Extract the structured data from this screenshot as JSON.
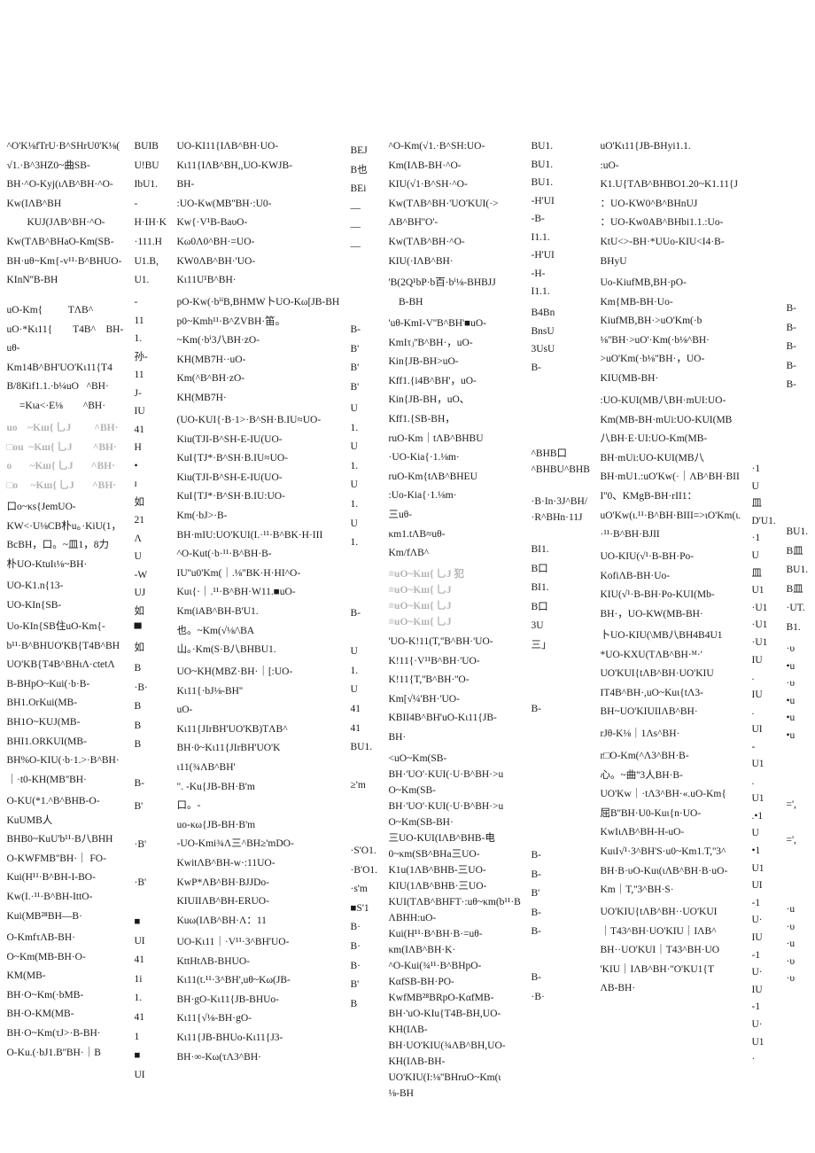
{
  "blocks": [
    "^O'K⅛fTrU·B^SHrU0'K⅛(\n√1.·B^3HZ0~曲SB-\nBH·^O-Kyj(ιΛB^BH·^O-\nKw(IΛB^BH\n        KUJ(JΛB^BH·^O-\nKw(TΛB^BHaO-Km(SB-\nBH·uθ~Km{-v¹¹·B^BHUO-\nKInN''B-BH",
    "uO-Km{          TΛB^\nuO·*Kι11{        T4B^    BH-\nuθ-\nKm14B^BH'UO'Kι11{T4\nB/8Kif1.1.·b¼uO   ^BH·\n     =Kιa<·E⅛        ^BH·",
    "uo    ~Kш{ 乚J         ^BH·\n□ou  ~Kш{ 乚J        ^BH·\no       ~Kш{ 乚J       ^BH·\n□o     ~Kш{ 乚J       ^BH·",
    "口o~κs{JemUO-\nKW<·U⅛CB朴u。·KiU(1，\nBcBH，口。~皿1，8力\n朴UO-KtuIι⅛~BH·",
    "UO-K1.n{13-\nUO-KIn{SB-",
    "Uo-KIn{SB住uO-Km{-\nb¹¹·B^BHUO'KB{T4B^BH\nUO'KB{T4B^BHιΛ·ctetΛ\nB-BHpO~Kui(·b·B-\nBH1.OrKui(MB-\nBH1O~KUJ(MB-\nBHI1.ORKUI(MB-\nBH%O-KIU(·b·1.>·B^BH·\n｜·t0-KH(MB''BH·",
    "O-KU(*1.^B^BHB-O-\nKuUMB人\nBHB0~KuU'b¹¹·B八BHH\nO-KWFMB''BH·｜ FO-\nKui(H¹¹·B^BH-I-BO-\nKw(I.·¹¹·B^BH-IttO-\nKui(MB²⁸BH—B·",
    "O-KmfτΛB-BH·\nO~Km(MB-BH·O-\nKM(MB-\nBH·O~Km(·bMB-\nBH·O-KM(MB-\nBH·O~Km(τJ>·B-BH·\nO-Ku.(·bJ1.B''BH·｜B",
    "BUIB\nU!BU\nIbU1.\n-\nH·IH·K\n·111.H\nU1.B,\nU1.",
    "-\n11\n1.\n孙-\n11\nJ-\nIU\n41\nH\n•\nɪ\n如\n21\nΛ\nU\n-W\nUJ\n如\n▀\n如",
    "B\n·B·\nB\nB\nB\n\nB-",
    "B'\n\n·B'\n\n·B'",
    "UO-KI11{IΛB^BH·UO-\nKι11{IΛB^BH,,UO-KWJB-\nBH-\n:UO-Kw(MB''BH·:U0-\nKw{·V¹B-BaυO-\nKω0Λ0^BH·=UO-\nKW0ΛB^BH·'UO-\nKι11U¹B^BH·",
    "pO-Kw(·bⁱⁱB,BHMW卜UO-Kω[JB-BH\np0~Kmh¹¹·B^ZVBH·笛。\n~Km(·bⁱ3八BH·zO-\nKH(MB7H··uO-\nKm(^B^BH·zO-\nKH(MB7H·",
    "(UO-KUI{·B·1>·B^SH·B.IU≈UO-\nKiu(TJI-B^SH-E-IU(UO-\nKuI{TJ*·B^SH·B.IU≈UO-\nKiu(TJI-B^SH-E-IU(UO-\nKuI{TJ*·B^SH·B.IU:UO-\nKm(·bJ>·B-\nBH·mIU:UO'KUI(I.·¹¹·B^BK·H·III\n^O-Kut(·b·¹¹·B^BH·B-\nIU''u0'Km(｜.⅛''BK·H·HI^O-\nKuι{·｜.¹¹·B^BH·W11.■uO-\nKm(iAB^BH-B'U1.\n也。~Km(√⅛/\\BA\n山。·Km(S·B八BHBU1.",
    "UO~KH(MBZ·BH·｜[:UO-\nKι11{·bJ⅛-BH''\nuO-\nKι11{JIrBH'UO'KB)TΛB^\nBH·0~Kι11{JIrBH'UO'K\nι11(¾ΛB^BH'\n\". -Ku{JB-BH·B'm\n口。-\nuo-κω{JB-BH·B'm\n-UO-Kmi¾Λ三^BH≥'mDO-\nKwitΛB^BH-w·:11UO-\nKwP*ΛB^BH·BJJDo-\nKIUIIΛB^BH-ERUO-\nKuω(IΛB^BH·Λ：11",
    "UO-Kι11｜·V¹¹·3^BH'UO-\nKttHtΛB-BHUO-\nKι11(t.¹¹·3^BH',uθ~Kω(JB-\nBH·gO-Kι11{JB-BHUo-\nKι11{√⅛-BH·gO-\nKι11{JB-BHUo-Kι11{J3-\nBH·∞-Kω(τΛ3^BH·",
    "BEJ\nB也\nBEi\n—\n—\n—",
    "B-\nB'\nB'\nB'",
    "U\n1.\nU\n1.\nU\n1.\nU\n1.",
    "B-\n\nU\n1.\nU\n41\n41\nBU1.\n\n≥'m",
    "·S'O1.\n·B'O1.\n·s'm\n■S'1\nB·\nB·\nB·\nB'\nB",
    "■\nUI\n41\n1i\n1.\n41\n1\n■\nUI",
    "^O-Km(√1.·B^SH:UO-\nKm(IΛB-BH·^O-\nKIU(√1·B^SH·^O-\nKw(TΛB^BH·'UO'KUI(·>\nΛB^BH''O'-\nKw(TΛB^BH·^O-\nKIU(·IΛB^BH·",
    "'B(2Q¹bP·b百·bⁱ⅛-BHBJJ\n    B-BH",
    "'uθ-KmI-V''B^BH'■uO-\nKmIτⱼ''B^BH·，uO-\nKin{JB-BH>uO-\nKff1.{i4B^BH'，uO-\nKin{JB-BH，uO、\nKff1.{SB-BH，\nruO-Km｜tΛB^BHBU\n·UO-Kia{·1.⅛m·\nruO-Km{tΛB^BHEU\n:Uo-Kia{·1.⅛m·\n三uθ-\nκm1.tΛB≈uθ-\nKm/fΛB^",
    "≡uO~Kш{ 乚J 犯\n≡uO~Kш{ 乚J\n≡uO~Kш{ 乚J\n≡uO~Kш{ 乚J",
    "^BHB口\n^BHBU^BHB\n\n·B·In·3J^BH/\n·R^BHn·11J",
    "'UO-K!11(T,''B^BH·'UO-\nK!11{·V¹¹B^BH·'UO-\nK!11{T,''B^BH·''O-\nKm[√¼'BH·'UO-\nKBII4B^BH'uO-Kι11{JB-\nBH·",
    "<uO~Km(SB-\nBH·'UO'·KUI(·U·B^BH·>u\nO~Km(SB-\nBH·'UO'·KUI(·U·B^BH·>u\nO~Km(SB-BH·\n三UO-KUI(IΛB^BHB-电\n0~κm(SB^BHa三UO-\nK1u(1ΛB^BHB-三UO-\nKIU(1ΛB^BHB·三UO-\nKUI(TΛB^BHFT·:uθ~κm(b¹¹·B\nΛBHH:uO-\nKui(H¹¹·B^BH·B·=uθ-\nκm(IΛB^BH·K·\n^O-Kui(¾¹¹·B^BHpO-\nKαfSB-BH·PO-\nKwfMB²⁸BRpO-KαfMB-\nBH·'uO-KIu{T4B-BH,UO-\nKH(IΛB-\nBH·UO'KIU(¾ΛB^BH,UO-\nKH(IΛB-BH-\nUO'KIU(I:⅛''BHruO~Km(ι\n⅛-BH",
    "BU1.\nBU1.\nBU1.\n-H'UI\n-B-\nI1.1.\n-H'UI\n-H-\nI1.1.",
    "B4Bn\nBnsU\n3UsU\nB-",
    "BI1.\nB口\nBI1.\nB口\n3U\n三」",
    "B-",
    "B-\nB-\nB'\nB-\nB-",
    "B-\n·B·",
    "uO'Kι11{JB-BHyi1.1.\n:uO-\nK1.U{TΛB^BHBO1.20~K1.11{J\n：UO-KW0^B^BHnUJ\n：UO-Kw0AB^BHbi1.1.:Uo-\nKtU<>-BH·*UUo-KIU<I4·B-\nBHyU",
    "Uo-KiufMB,BH·pO-\nKm{MB-BH·Uo-\nKiufMB,BH·>uO'Km(·b\n⅛''BH·>uO'·Km(·b⅛^BH·\n>uO'Km(·b⅛''BH·，UO-\nKIU(MB-BH·",
    ":UO-KUI(MB八BH·mUI:UO-\nKm(MB-BH·mUi:UO-KUI(MB\n八BH·E·UI:UO-Km(MB-\nBH·mUi:UO-KUI(MB八\nBH·mU1.:uO'Kw(·｜ΛB^BH·BII\nI''0、KMgB-BH·rII1：\nuO'Kw(ι.¹¹·B^BH·BIII=>ιO'Km(ι.\n·¹¹·B^BH·BJII",
    "UO-KIU(√¹·B-BH·Po-\nKofiΛB-BH·Uo-\nKIU(√¹·B-BH·Po-KUI(Mb-\nBH·，UO-KW(MB-BH·",
    "卜UO-KIU(\\MB八BH4B4U1\n*UO-KXU(TΛB^BH·ᴹ·'\nUO'KUI{tΛB^BH·UO'KIU\nIT4B^BH·,uO~Kuι{tΛ3-\nBH~UO'KIUIIΛB^BH·",
    "rJθ-K⅛｜1Λs^BH·",
    "r□O-Km(^Λ3^BH·B-\n心。~曲''3人BH·B-\nUO'Kw｜·tΛ3^BH·«.uO-Km{\n屈B''BH·U0-Kuι{n·UO-\nKwIιΛB^BH-H-uO-\nKuιI√¹·3^BH'S·u0~Km1.T,''3^\nBH·B·υO-Kuι(ιΛB^BH·B·uO-\nKm｜T,''3^BH·S·",
    "UO'KIU{tΛB^BH··UO'KUI\n｜T43^BH·UO'KIU｜IΛB^\nBH··UO'KUI｜T43^BH·UO\n'KIU｜IΛB^BH·''O'KU1{T\nΛB-BH·",
    "B-\nB-\nB-\nB-\nB-",
    "BU1.\nB皿\nBU1.\nB皿\n·UT.\nB1.",
    "·1\nU\n皿\nD'U1.\n·1\nU\n皿\nU1\n·U1\n·U1\n·U1\nIU\n.\nIU\n.\nUI\n-\nU1\n.\nU1\n.•1\nU\n•1\nU1\nUI\n-1\nU·\nIU\n-1\nU·\nIU\n-1\nU·\nU1\n·",
    "·υ\n•u\n·υ\n•u\n•u\n•u\n\n\n\n=',\n\n=',\n\n\n\n·u\n·υ\n·u\n·υ\n·υ"
  ]
}
